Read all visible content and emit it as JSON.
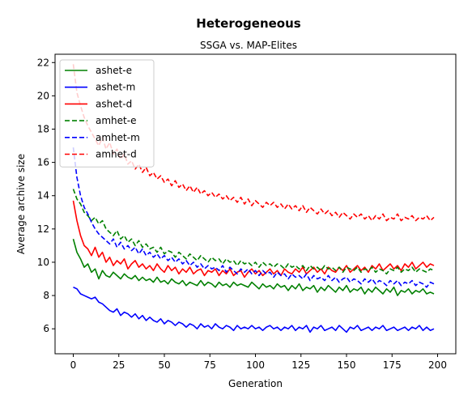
{
  "figure": {
    "suptitle": "Heterogeneous",
    "subtitle": "SSGA vs. MAP-Elites"
  },
  "chart_data": {
    "type": "line",
    "title": "SSGA vs. MAP-Elites",
    "xlabel": "Generation",
    "ylabel": "Average archive size",
    "xlim": [
      -10,
      210
    ],
    "ylim": [
      4.5,
      22.5
    ],
    "xticks": [
      0,
      25,
      50,
      75,
      100,
      125,
      150,
      175,
      200
    ],
    "yticks": [
      6,
      8,
      10,
      12,
      14,
      16,
      18,
      20,
      22
    ],
    "grid": false,
    "legend_position": "top-left",
    "x_start": 0,
    "x_step": 2,
    "series": [
      {
        "name": "ashet-e",
        "color": "#008000",
        "dash": "solid",
        "values": [
          11.4,
          10.6,
          10.2,
          9.7,
          9.9,
          9.4,
          9.6,
          9.0,
          9.5,
          9.2,
          9.1,
          9.4,
          9.2,
          9.0,
          9.3,
          9.1,
          9.0,
          9.2,
          8.9,
          9.1,
          8.9,
          9.0,
          8.8,
          9.1,
          8.8,
          8.9,
          8.7,
          9.0,
          8.8,
          8.7,
          8.9,
          8.6,
          8.8,
          8.7,
          8.6,
          8.9,
          8.6,
          8.8,
          8.7,
          8.5,
          8.8,
          8.6,
          8.7,
          8.5,
          8.8,
          8.6,
          8.7,
          8.6,
          8.5,
          8.8,
          8.6,
          8.4,
          8.7,
          8.5,
          8.6,
          8.4,
          8.7,
          8.5,
          8.6,
          8.3,
          8.6,
          8.4,
          8.7,
          8.3,
          8.5,
          8.4,
          8.6,
          8.2,
          8.5,
          8.3,
          8.6,
          8.4,
          8.2,
          8.5,
          8.3,
          8.6,
          8.2,
          8.4,
          8.3,
          8.5,
          8.1,
          8.4,
          8.2,
          8.5,
          8.3,
          8.1,
          8.4,
          8.2,
          8.5,
          8.0,
          8.3,
          8.2,
          8.4,
          8.1,
          8.3,
          8.2,
          8.4,
          8.1,
          8.2,
          8.1
        ]
      },
      {
        "name": "ashet-m",
        "color": "#0000ff",
        "dash": "solid",
        "values": [
          8.5,
          8.4,
          8.1,
          8.0,
          7.9,
          7.8,
          7.9,
          7.6,
          7.5,
          7.3,
          7.1,
          7.0,
          7.2,
          6.8,
          7.0,
          6.9,
          6.7,
          6.9,
          6.6,
          6.8,
          6.5,
          6.7,
          6.5,
          6.4,
          6.6,
          6.3,
          6.5,
          6.4,
          6.2,
          6.4,
          6.3,
          6.1,
          6.3,
          6.2,
          6.0,
          6.3,
          6.1,
          6.2,
          6.0,
          6.3,
          6.1,
          6.0,
          6.2,
          6.1,
          5.9,
          6.2,
          6.0,
          6.1,
          6.0,
          6.2,
          6.0,
          6.1,
          5.9,
          6.1,
          6.2,
          6.0,
          6.1,
          5.9,
          6.1,
          6.0,
          6.2,
          5.9,
          6.1,
          6.0,
          6.2,
          5.8,
          6.1,
          6.0,
          6.2,
          5.9,
          6.0,
          6.1,
          5.9,
          6.2,
          6.0,
          5.8,
          6.1,
          6.0,
          6.2,
          5.9,
          6.0,
          6.1,
          5.9,
          6.1,
          6.0,
          6.2,
          5.9,
          6.0,
          6.1,
          5.9,
          6.0,
          6.1,
          5.9,
          6.1,
          6.0,
          6.2,
          5.9,
          6.1,
          5.9,
          6.0
        ]
      },
      {
        "name": "ashet-d",
        "color": "#ff0000",
        "dash": "solid",
        "values": [
          13.7,
          12.5,
          11.6,
          11.0,
          10.8,
          10.4,
          10.9,
          10.3,
          10.6,
          10.0,
          10.3,
          9.8,
          10.1,
          9.9,
          10.2,
          9.6,
          9.9,
          10.1,
          9.7,
          9.9,
          9.6,
          9.8,
          9.5,
          9.9,
          9.6,
          9.4,
          9.8,
          9.5,
          9.7,
          9.3,
          9.6,
          9.4,
          9.7,
          9.3,
          9.5,
          9.6,
          9.2,
          9.5,
          9.4,
          9.6,
          9.2,
          9.5,
          9.3,
          9.6,
          9.2,
          9.4,
          9.5,
          9.1,
          9.4,
          9.6,
          9.3,
          9.5,
          9.2,
          9.4,
          9.6,
          9.3,
          9.5,
          9.2,
          9.6,
          9.4,
          9.3,
          9.6,
          9.4,
          9.7,
          9.3,
          9.5,
          9.7,
          9.4,
          9.6,
          9.3,
          9.7,
          9.5,
          9.4,
          9.7,
          9.5,
          9.8,
          9.4,
          9.6,
          9.8,
          9.5,
          9.7,
          9.4,
          9.8,
          9.6,
          9.9,
          9.5,
          9.7,
          9.9,
          9.6,
          9.8,
          9.5,
          9.9,
          9.7,
          10.0,
          9.6,
          9.8,
          10.0,
          9.7,
          9.9,
          9.8
        ]
      },
      {
        "name": "amhet-e",
        "color": "#008000",
        "dash": "dashed",
        "values": [
          14.4,
          13.8,
          13.5,
          13.0,
          12.8,
          12.5,
          12.7,
          12.3,
          12.5,
          12.0,
          11.8,
          11.6,
          11.9,
          11.4,
          11.6,
          11.2,
          11.4,
          11.0,
          11.3,
          10.9,
          11.1,
          10.8,
          10.9,
          10.6,
          10.9,
          10.5,
          10.7,
          10.6,
          10.3,
          10.6,
          10.4,
          10.2,
          10.5,
          10.3,
          10.1,
          10.4,
          10.2,
          10.0,
          10.3,
          10.1,
          10.2,
          9.9,
          10.2,
          10.0,
          10.1,
          9.8,
          10.1,
          9.9,
          10.0,
          9.8,
          10.0,
          9.7,
          10.0,
          9.8,
          9.9,
          9.7,
          9.9,
          9.8,
          9.6,
          9.9,
          9.7,
          9.8,
          9.6,
          9.8,
          9.5,
          9.8,
          9.6,
          9.7,
          9.5,
          9.8,
          9.6,
          9.7,
          9.5,
          9.7,
          9.4,
          9.7,
          9.6,
          9.5,
          9.7,
          9.4,
          9.6,
          9.5,
          9.7,
          9.4,
          9.6,
          9.5,
          9.3,
          9.6,
          9.5,
          9.7,
          9.4,
          9.6,
          9.5,
          9.7,
          9.4,
          9.6,
          9.5,
          9.4,
          9.6,
          9.5
        ]
      },
      {
        "name": "amhet-m",
        "color": "#0000ff",
        "dash": "dashed",
        "values": [
          16.9,
          15.1,
          14.0,
          13.3,
          12.9,
          12.4,
          12.0,
          11.7,
          11.5,
          11.3,
          11.1,
          11.4,
          10.9,
          11.2,
          10.8,
          11.0,
          10.7,
          10.9,
          10.5,
          10.8,
          10.4,
          10.6,
          10.3,
          10.5,
          10.2,
          10.4,
          10.1,
          10.3,
          10.0,
          10.2,
          9.9,
          10.1,
          9.8,
          10.0,
          9.7,
          9.9,
          9.6,
          9.8,
          9.6,
          9.7,
          9.5,
          9.8,
          9.4,
          9.7,
          9.5,
          9.3,
          9.6,
          9.4,
          9.6,
          9.3,
          9.5,
          9.2,
          9.5,
          9.3,
          9.4,
          9.1,
          9.4,
          9.2,
          9.3,
          9.0,
          9.3,
          9.1,
          9.2,
          9.0,
          9.3,
          8.9,
          9.2,
          9.0,
          9.1,
          8.9,
          9.2,
          8.9,
          9.1,
          8.8,
          9.0,
          9.1,
          8.8,
          9.0,
          8.9,
          8.7,
          9.0,
          8.8,
          9.0,
          8.7,
          8.9,
          8.8,
          8.6,
          8.9,
          8.7,
          8.9,
          8.6,
          8.8,
          8.7,
          8.9,
          8.6,
          8.8,
          8.7,
          8.5,
          8.8,
          8.7
        ]
      },
      {
        "name": "amhet-d",
        "color": "#ff0000",
        "dash": "dashed",
        "values": [
          21.9,
          20.2,
          19.4,
          18.7,
          18.2,
          17.8,
          17.4,
          17.0,
          17.5,
          16.8,
          17.2,
          16.5,
          16.8,
          16.2,
          16.5,
          15.9,
          16.1,
          15.6,
          15.9,
          15.4,
          15.7,
          15.2,
          15.4,
          15.0,
          15.2,
          14.8,
          15.0,
          14.6,
          14.9,
          14.5,
          14.7,
          14.3,
          14.6,
          14.2,
          14.5,
          14.1,
          14.3,
          14.0,
          14.2,
          13.9,
          14.1,
          13.8,
          14.0,
          13.7,
          13.9,
          13.6,
          13.9,
          13.5,
          13.8,
          13.4,
          13.7,
          13.5,
          13.3,
          13.6,
          13.4,
          13.6,
          13.3,
          13.5,
          13.2,
          13.5,
          13.2,
          13.4,
          13.1,
          13.4,
          13.0,
          13.3,
          13.1,
          12.9,
          13.2,
          12.9,
          13.1,
          12.8,
          13.0,
          12.7,
          13.0,
          12.8,
          12.6,
          12.9,
          12.7,
          12.9,
          12.6,
          12.8,
          12.5,
          12.8,
          12.6,
          12.9,
          12.5,
          12.7,
          12.6,
          12.9,
          12.5,
          12.7,
          12.6,
          12.8,
          12.5,
          12.7,
          12.6,
          12.8,
          12.5,
          12.7
        ]
      }
    ]
  }
}
